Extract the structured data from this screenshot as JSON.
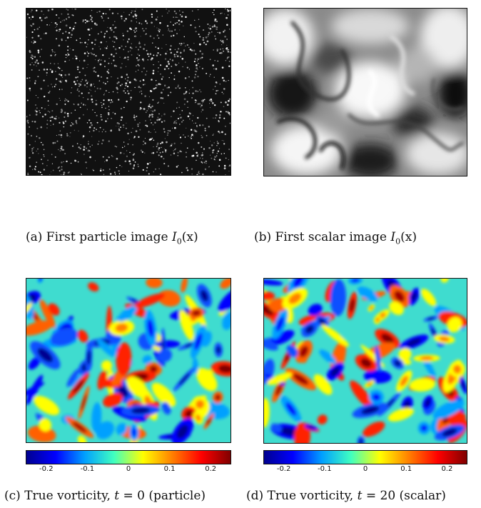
{
  "panels": {
    "a": {
      "caption_prefix": "(a) First particle image ",
      "caption_math": "I",
      "caption_sub": "0",
      "caption_suffix": "(x)"
    },
    "b": {
      "caption_prefix": "(b) First scalar image ",
      "caption_math": "I",
      "caption_sub": "0",
      "caption_suffix": "(x)"
    },
    "c": {
      "caption_prefix": "(c) True vorticity, ",
      "caption_math": "t",
      "caption_eq": " = 0 (particle)"
    },
    "d": {
      "caption_prefix": "(d) True vorticity, ",
      "caption_math": "t",
      "caption_eq": " = 20 (scalar)"
    }
  },
  "colorbar": {
    "ticks": [
      "-0.2",
      "-0.1",
      "0",
      "0.1",
      "0.2"
    ],
    "tick_values": [
      -0.2,
      -0.1,
      0,
      0.1,
      0.2
    ],
    "range": [
      -0.25,
      0.25
    ],
    "colormap": [
      "#00008f",
      "#0000ff",
      "#00a0ff",
      "#40ffc0",
      "#ffff00",
      "#ff8000",
      "#ff0000",
      "#800000"
    ]
  },
  "colors": {
    "jet_dark_blue": "#00008f",
    "jet_dark_red": "#800000",
    "frame": "#111111"
  }
}
